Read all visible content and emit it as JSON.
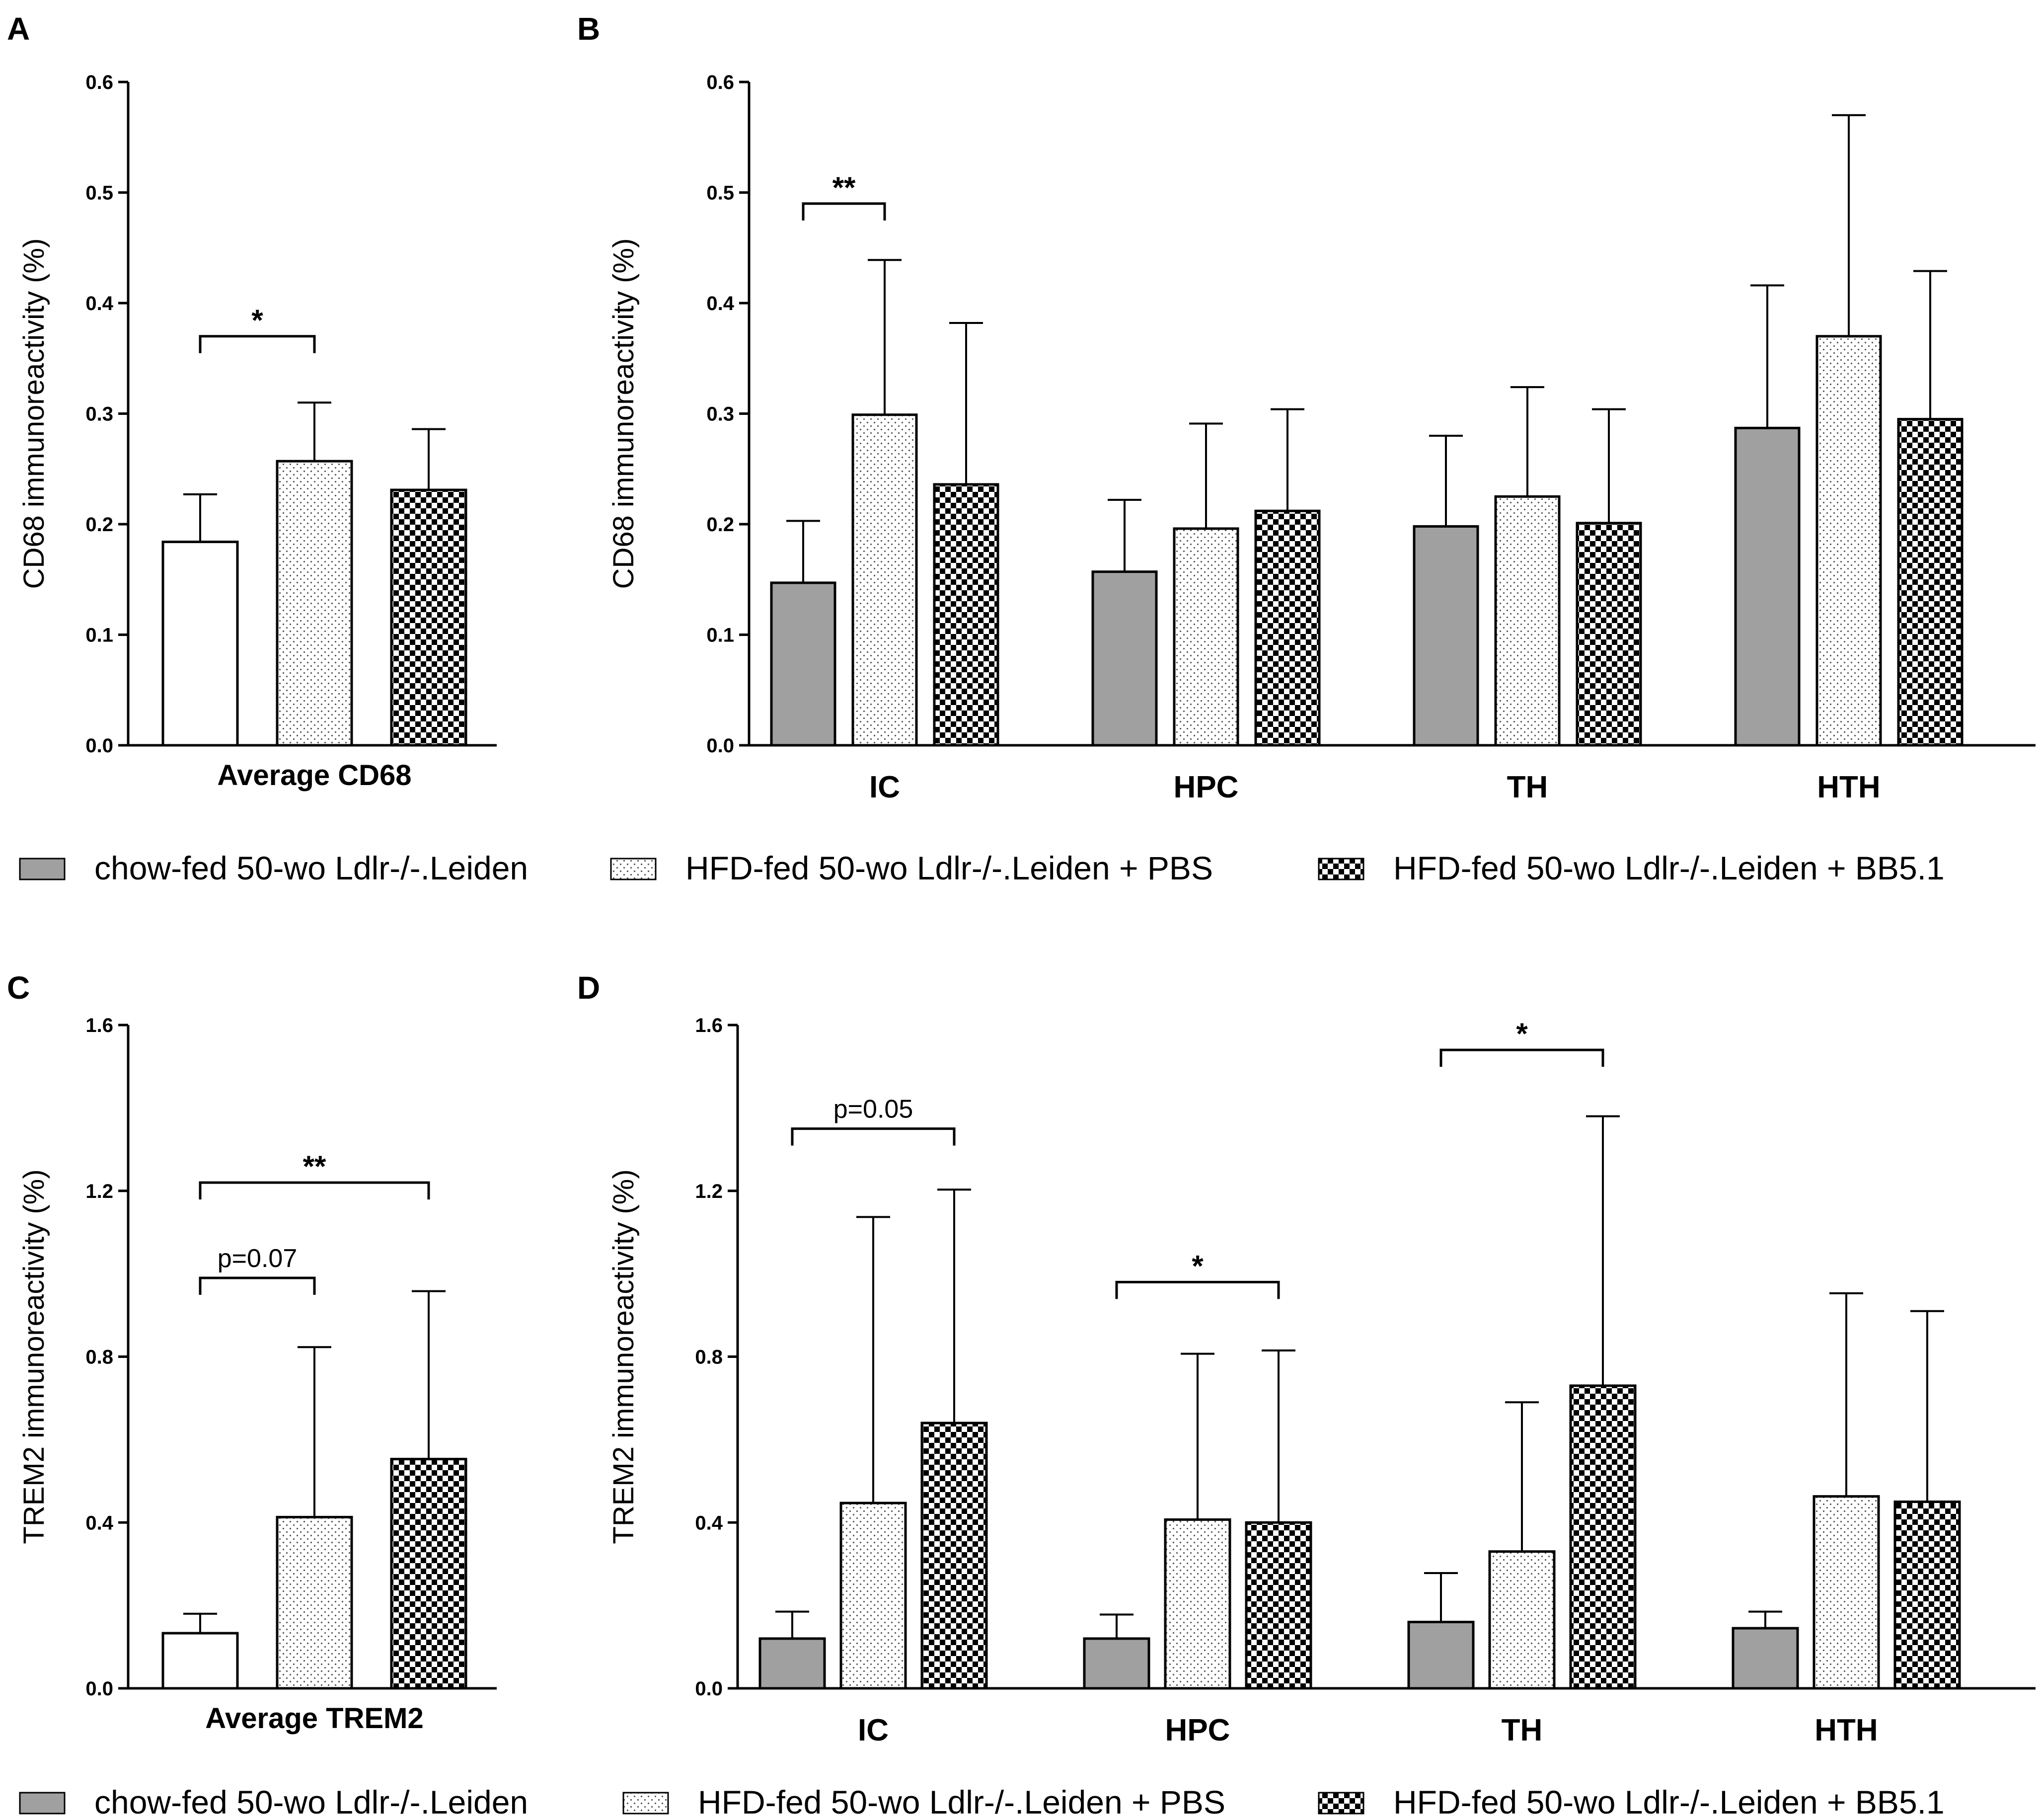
{
  "figure": {
    "colors": {
      "chow": "#a0a0a0",
      "outline": "#000000",
      "dot_bg": "#ffffff",
      "dot": "#555555"
    },
    "legend_row1": [
      {
        "key": "chow",
        "label": "chow-fed 50-wo Ldlr-/-.Leiden"
      },
      {
        "key": "pbs",
        "label": "HFD-fed 50-wo Ldlr-/-.Leiden + PBS"
      },
      {
        "key": "bb",
        "label": "HFD-fed 50-wo Ldlr-/-.Leiden + BB5.1"
      }
    ],
    "legend_row2": [
      {
        "key": "chow",
        "label": "chow-fed 50-wo Ldlr-/-.Leiden"
      },
      {
        "key": "pbs",
        "label": "HFD-fed 50-wo Ldlr-/-.Leiden + PBS"
      },
      {
        "key": "bb",
        "label": "HFD-fed 50-wo Ldlr-/-.Leiden + BB5.1"
      }
    ]
  },
  "chart_data": [
    {
      "panel": "A",
      "type": "bar",
      "ylabel": "CD68 immunoreactivity (%)",
      "ylim": [
        0,
        0.6
      ],
      "yticks": [
        "0.0",
        "0.1",
        "0.2",
        "0.3",
        "0.4",
        "0.5",
        "0.6"
      ],
      "categories": [
        "Average CD68"
      ],
      "first_group_fill": "white",
      "series": [
        {
          "name": "chow-fed 50-wo Ldlr-/-.Leiden",
          "style": "solid",
          "values": [
            0.184
          ],
          "errors": [
            0.043
          ]
        },
        {
          "name": "HFD-fed 50-wo Ldlr-/-.Leiden + PBS",
          "style": "dots",
          "values": [
            0.257
          ],
          "errors": [
            0.053
          ]
        },
        {
          "name": "HFD-fed 50-wo Ldlr-/-.Leiden + BB5.1",
          "style": "checker",
          "values": [
            0.231
          ],
          "errors": [
            0.055
          ]
        }
      ],
      "annotations": [
        {
          "category": 0,
          "from": 0,
          "to": 1,
          "y": 0.37,
          "text": "*"
        }
      ]
    },
    {
      "panel": "B",
      "type": "bar",
      "ylabel": "CD68 immunoreactivity (%)",
      "ylim": [
        0,
        0.6
      ],
      "yticks": [
        "0.0",
        "0.1",
        "0.2",
        "0.3",
        "0.4",
        "0.5",
        "0.6"
      ],
      "categories": [
        "IC",
        "HPC",
        "TH",
        "HTH"
      ],
      "series": [
        {
          "name": "chow-fed 50-wo Ldlr-/-.Leiden",
          "style": "solid",
          "values": [
            0.147,
            0.157,
            0.198,
            0.287
          ],
          "errors": [
            0.056,
            0.065,
            0.082,
            0.129
          ]
        },
        {
          "name": "HFD-fed 50-wo Ldlr-/-.Leiden + PBS",
          "style": "dots",
          "values": [
            0.299,
            0.196,
            0.225,
            0.37
          ],
          "errors": [
            0.14,
            0.095,
            0.099,
            0.2
          ]
        },
        {
          "name": "HFD-fed 50-wo Ldlr-/-.Leiden + BB5.1",
          "style": "checker",
          "values": [
            0.236,
            0.212,
            0.201,
            0.295
          ],
          "errors": [
            0.146,
            0.092,
            0.103,
            0.134
          ]
        }
      ],
      "annotations": [
        {
          "category": 0,
          "from": 0,
          "to": 1,
          "y": 0.49,
          "text": "**"
        }
      ]
    },
    {
      "panel": "C",
      "type": "bar",
      "ylabel": "TREM2 immunoreactivity (%)",
      "ylim": [
        0,
        1.6
      ],
      "yticks": [
        "0.0",
        "0.4",
        "0.8",
        "1.2",
        "1.6"
      ],
      "categories": [
        "Average TREM2"
      ],
      "first_group_fill": "white",
      "series": [
        {
          "name": "chow-fed 50-wo Ldlr-/-.Leiden",
          "style": "solid",
          "values": [
            0.133
          ],
          "errors": [
            0.047
          ]
        },
        {
          "name": "HFD-fed 50-wo Ldlr-/-.Leiden + PBS",
          "style": "dots",
          "values": [
            0.413
          ],
          "errors": [
            0.41
          ]
        },
        {
          "name": "HFD-fed 50-wo Ldlr-/-.Leiden + BB5.1",
          "style": "checker",
          "values": [
            0.553
          ],
          "errors": [
            0.405
          ]
        }
      ],
      "annotations": [
        {
          "category": 0,
          "from": 0,
          "to": 1,
          "y": 0.99,
          "text": "p=0.07"
        },
        {
          "category": 0,
          "from": 0,
          "to": 2,
          "y": 1.22,
          "text": "**"
        }
      ]
    },
    {
      "panel": "D",
      "type": "bar",
      "ylabel": "TREM2 immunoreactivity (%)",
      "ylim": [
        0,
        1.6
      ],
      "yticks": [
        "0.0",
        "0.4",
        "0.8",
        "1.2",
        "1.6"
      ],
      "categories": [
        "IC",
        "HPC",
        "TH",
        "HTH"
      ],
      "series": [
        {
          "name": "chow-fed 50-wo Ldlr-/-.Leiden",
          "style": "solid",
          "values": [
            0.12,
            0.12,
            0.16,
            0.145
          ],
          "errors": [
            0.065,
            0.058,
            0.118,
            0.04
          ]
        },
        {
          "name": "HFD-fed 50-wo Ldlr-/-.Leiden + PBS",
          "style": "dots",
          "values": [
            0.447,
            0.407,
            0.33,
            0.463
          ],
          "errors": [
            0.69,
            0.4,
            0.36,
            0.49
          ]
        },
        {
          "name": "HFD-fed 50-wo Ldlr-/-.Leiden + BB5.1",
          "style": "checker",
          "values": [
            0.64,
            0.4,
            0.73,
            0.45
          ],
          "errors": [
            0.563,
            0.415,
            0.65,
            0.46
          ]
        }
      ],
      "annotations": [
        {
          "category": 0,
          "from": 0,
          "to": 2,
          "y": 1.35,
          "text": "p=0.05"
        },
        {
          "category": 1,
          "from": 0,
          "to": 2,
          "y": 0.98,
          "text": "*"
        },
        {
          "category": 2,
          "from": 0,
          "to": 2,
          "y": 1.54,
          "text": "*"
        }
      ]
    }
  ]
}
